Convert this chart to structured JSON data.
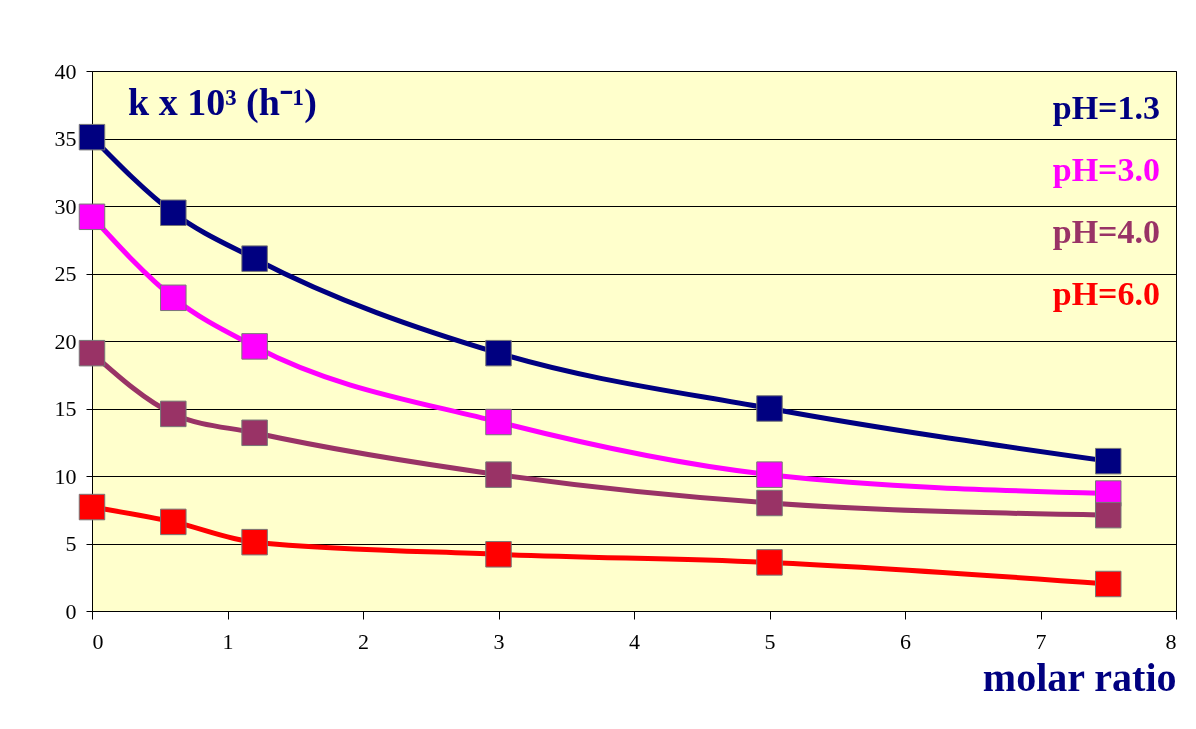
{
  "chart_data": {
    "type": "line",
    "ylabel": "k x 10³ (h⁻¹)",
    "xlabel": "molar ratio",
    "x": [
      0,
      0.6,
      1.2,
      3,
      5,
      7.5
    ],
    "series": [
      {
        "name": "pH=1.3",
        "color": "#000080",
        "values": [
          35.1,
          29.5,
          26.1,
          19.1,
          15.0,
          11.1
        ]
      },
      {
        "name": "pH=3.0",
        "color": "#ff00ff",
        "values": [
          29.2,
          23.2,
          19.6,
          14.0,
          10.1,
          8.7
        ]
      },
      {
        "name": "pH=4.0",
        "color": "#993366",
        "values": [
          19.1,
          14.6,
          13.2,
          10.1,
          8.0,
          7.1
        ]
      },
      {
        "name": "pH=6.0",
        "color": "#ff0000",
        "values": [
          7.7,
          6.6,
          5.1,
          4.2,
          3.6,
          2.0
        ]
      }
    ],
    "xlim": [
      0,
      8
    ],
    "xticks": [
      0,
      1,
      2,
      3,
      4,
      5,
      6,
      7,
      8
    ],
    "ylim": [
      0,
      40
    ],
    "yticks": [
      0,
      5,
      10,
      15,
      20,
      25,
      30,
      35,
      40
    ],
    "grid": "y",
    "legend": "top right",
    "marker": "square",
    "line_style": "solid"
  }
}
